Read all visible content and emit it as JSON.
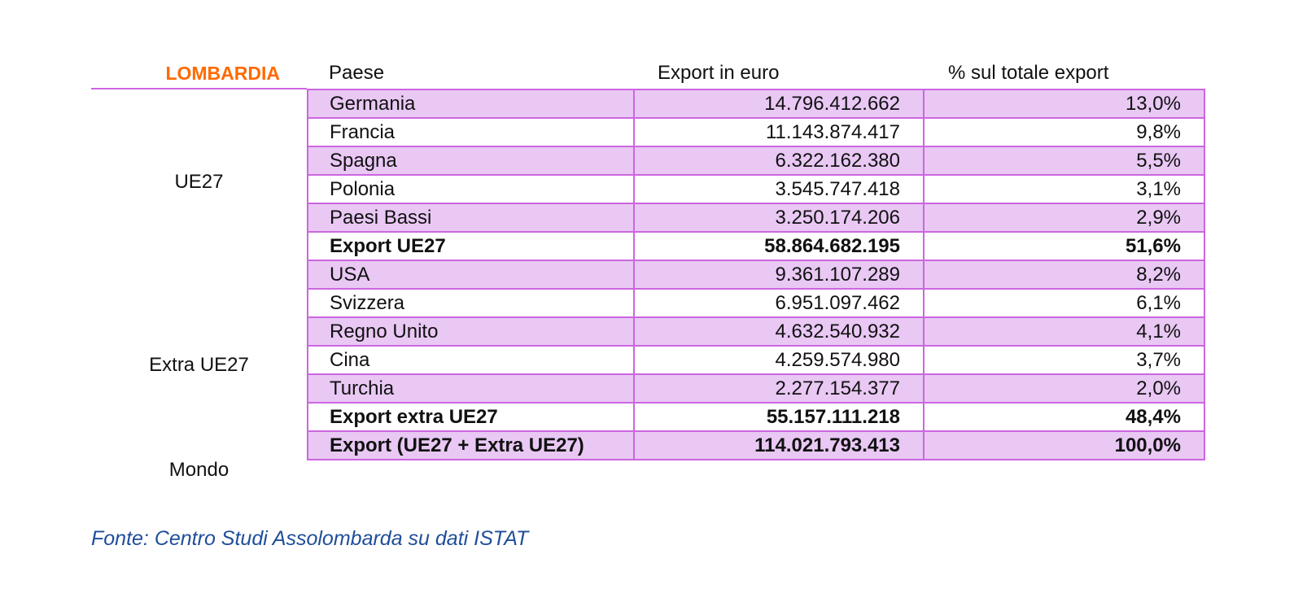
{
  "region": "LOMBARDIA",
  "headers": {
    "paese": "Paese",
    "export": "Export in euro",
    "percent": "% sul totale export"
  },
  "groups": [
    "UE27",
    "Extra UE27",
    "Mondo"
  ],
  "rows": [
    {
      "paese": "Germania",
      "export": "14.796.412.662",
      "percent": "13,0%"
    },
    {
      "paese": "Francia",
      "export": "11.143.874.417",
      "percent": "9,8%"
    },
    {
      "paese": "Spagna",
      "export": "6.322.162.380",
      "percent": "5,5%"
    },
    {
      "paese": "Polonia",
      "export": "3.545.747.418",
      "percent": "3,1%"
    },
    {
      "paese": "Paesi Bassi",
      "export": "3.250.174.206",
      "percent": "2,9%"
    },
    {
      "paese": "Export UE27",
      "export": "58.864.682.195",
      "percent": "51,6%"
    },
    {
      "paese": "USA",
      "export": "9.361.107.289",
      "percent": "8,2%"
    },
    {
      "paese": "Svizzera",
      "export": "6.951.097.462",
      "percent": "6,1%"
    },
    {
      "paese": "Regno Unito",
      "export": "4.632.540.932",
      "percent": "4,1%"
    },
    {
      "paese": "Cina",
      "export": "4.259.574.980",
      "percent": "3,7%"
    },
    {
      "paese": "Turchia",
      "export": "2.277.154.377",
      "percent": "2,0%"
    },
    {
      "paese": "Export extra UE27",
      "export": "55.157.111.218",
      "percent": "48,4%"
    },
    {
      "paese": "Export (UE27 + Extra UE27)",
      "export": "114.021.793.413",
      "percent": "100,0%"
    }
  ],
  "colors": {
    "region_title": "#ff6a00",
    "border": "#cc66e0",
    "row_shade": "#e9c8f4",
    "source_text": "#1f4e9a"
  },
  "source": "Fonte: Centro Studi Assolombarda su dati ISTAT"
}
